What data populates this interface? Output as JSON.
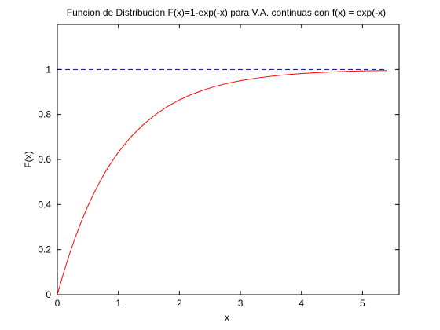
{
  "chart_data": {
    "type": "line",
    "title": "Funcion de Distribucion F(x)=1-exp(-x) para V.A. continuas con f(x) = exp(-x)",
    "xlabel": "x",
    "ylabel": "F(x)",
    "xlim": [
      0,
      5.6
    ],
    "ylim": [
      0,
      1.2
    ],
    "x_ticks": [
      0,
      1,
      2,
      3,
      4,
      5
    ],
    "y_ticks": [
      0,
      0.2,
      0.4,
      0.6,
      0.8,
      1
    ],
    "x_tick_labels": [
      "0",
      "1",
      "2",
      "3",
      "4",
      "5"
    ],
    "y_tick_labels": [
      "0",
      "0.2",
      "0.4",
      "0.6",
      "0.8",
      "1"
    ],
    "grid": false,
    "series": [
      {
        "color": "#ff0000",
        "style": "solid",
        "x": [
          0,
          0.1,
          0.2,
          0.3,
          0.4,
          0.5,
          0.6,
          0.7,
          0.8,
          0.9,
          1.0,
          1.2,
          1.4,
          1.6,
          1.8,
          2.0,
          2.2,
          2.4,
          2.6,
          2.8,
          3.0,
          3.3,
          3.6,
          3.9,
          4.2,
          4.5,
          4.8,
          5.1,
          5.4
        ],
        "y": [
          0,
          0.095,
          0.181,
          0.259,
          0.33,
          0.393,
          0.451,
          0.503,
          0.551,
          0.593,
          0.632,
          0.699,
          0.753,
          0.798,
          0.835,
          0.865,
          0.889,
          0.909,
          0.926,
          0.939,
          0.95,
          0.963,
          0.973,
          0.98,
          0.985,
          0.989,
          0.992,
          0.994,
          0.995
        ]
      },
      {
        "color": "#00008b",
        "style": "dashed",
        "x": [
          0,
          5.4
        ],
        "y": [
          1,
          1
        ]
      }
    ]
  }
}
